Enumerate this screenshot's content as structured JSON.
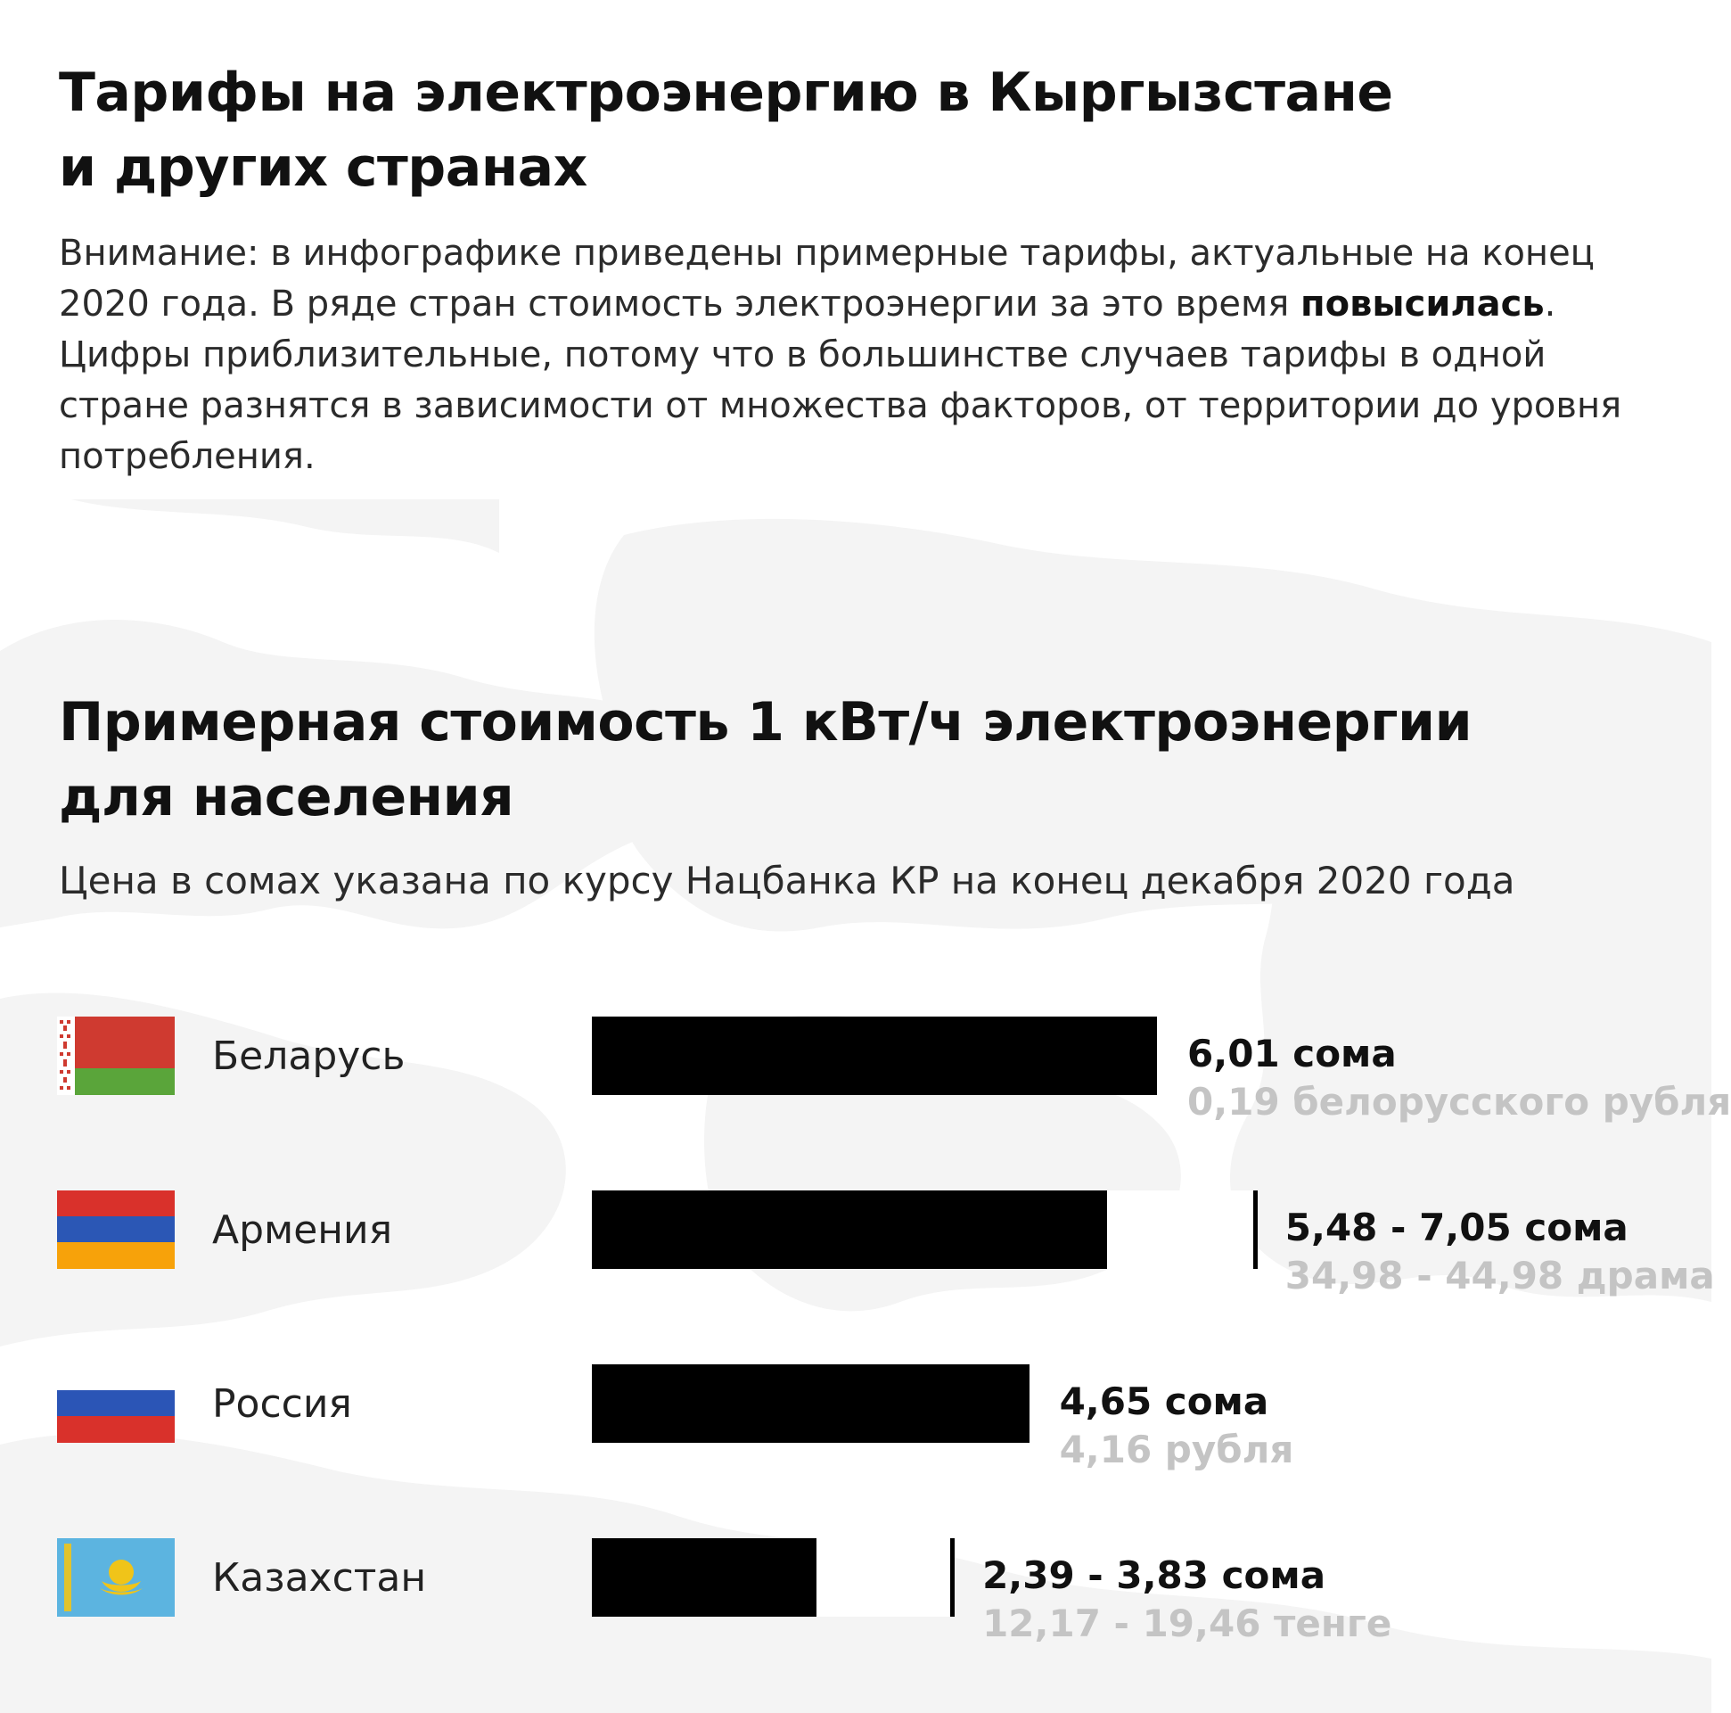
{
  "header": {
    "title_line1": "Тарифы на электроэнергию в Кыргызстане",
    "title_line2": "и других странах",
    "intro_part1": "Внимание: в инфографике приведены примерные тарифы, актуальные на конец 2020 года. В ряде стран стоимость электроэнергии за это время ",
    "intro_bold": "повысилась",
    "intro_part2": ". Цифры приблизительные, потому что в большинстве случаев тарифы в одной стране разнятся в зависимости от множества факторов, от территории до уровня потребления."
  },
  "chart_data": {
    "type": "bar",
    "title": "Примерная стоимость 1 кВт/ч электроэнергии для населения",
    "subtitle": "Цена в сомах указана по курсу Нацбанка КР на конец декабря 2020 года",
    "unit": "сом",
    "categories": [
      "Беларусь",
      "Армения",
      "Россия",
      "Казахстан"
    ],
    "series": [
      {
        "values_min": [
          6.01,
          5.48,
          4.65,
          2.39
        ],
        "values_max": [
          6.01,
          7.05,
          4.65,
          3.83
        ]
      }
    ],
    "xlim": [
      0,
      7.05
    ],
    "grid": false,
    "rows": [
      {
        "country": "Беларусь",
        "flag": "belarus-flag",
        "min": 6.01,
        "max": 6.01,
        "label": "6,01 сома",
        "local": "0,19 белорусского рубля"
      },
      {
        "country": "Армения",
        "flag": "armenia-flag",
        "min": 5.48,
        "max": 7.05,
        "label": "5,48 - 7,05 сома",
        "local": "34,98 - 44,98 драма"
      },
      {
        "country": "Россия",
        "flag": "russia-flag",
        "min": 4.65,
        "max": 4.65,
        "label": "4,65 сома",
        "local": "4,16 рубля"
      },
      {
        "country": "Казахстан",
        "flag": "kazakhstan-flag",
        "min": 2.39,
        "max": 3.83,
        "label": "2,39 - 3,83 сома",
        "local": "12,17 - 19,46 тенге"
      }
    ]
  },
  "colors": {
    "bar": "#000000",
    "range_fill": "#ffffff",
    "local_text": "#c4c4c4",
    "map": "#f3f3f3"
  }
}
